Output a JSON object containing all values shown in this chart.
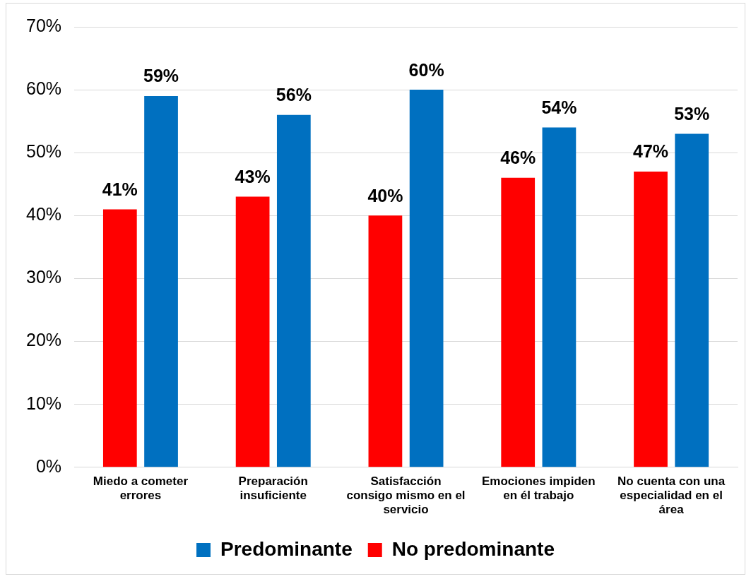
{
  "chart_data": {
    "type": "bar",
    "categories": [
      "Miedo a cometer errores",
      "Preparación insuficiente",
      "Satisfacción consigo mismo en el servicio",
      "Emociones impiden en él trabajo",
      "No cuenta con una especialidad en el área"
    ],
    "series": [
      {
        "name": "No predominante",
        "color": "#ff0000",
        "values": [
          41,
          43,
          40,
          46,
          47
        ],
        "value_labels": [
          "41%",
          "43%",
          "40%",
          "46%",
          "47%"
        ]
      },
      {
        "name": "Predominante",
        "color": "#0070c0",
        "values": [
          59,
          56,
          60,
          54,
          53
        ],
        "value_labels": [
          "59%",
          "56%",
          "60%",
          "54%",
          "53%"
        ]
      }
    ],
    "ylim": [
      0,
      70
    ],
    "yticks": [
      {
        "value": 0,
        "label": "0%"
      },
      {
        "value": 10,
        "label": "10%"
      },
      {
        "value": 20,
        "label": "20%"
      },
      {
        "value": 30,
        "label": "30%"
      },
      {
        "value": 40,
        "label": "40%"
      },
      {
        "value": 50,
        "label": "50%"
      },
      {
        "value": 60,
        "label": "60%"
      },
      {
        "value": 70,
        "label": "70%"
      }
    ],
    "grid": "y",
    "legend": "bottom"
  }
}
